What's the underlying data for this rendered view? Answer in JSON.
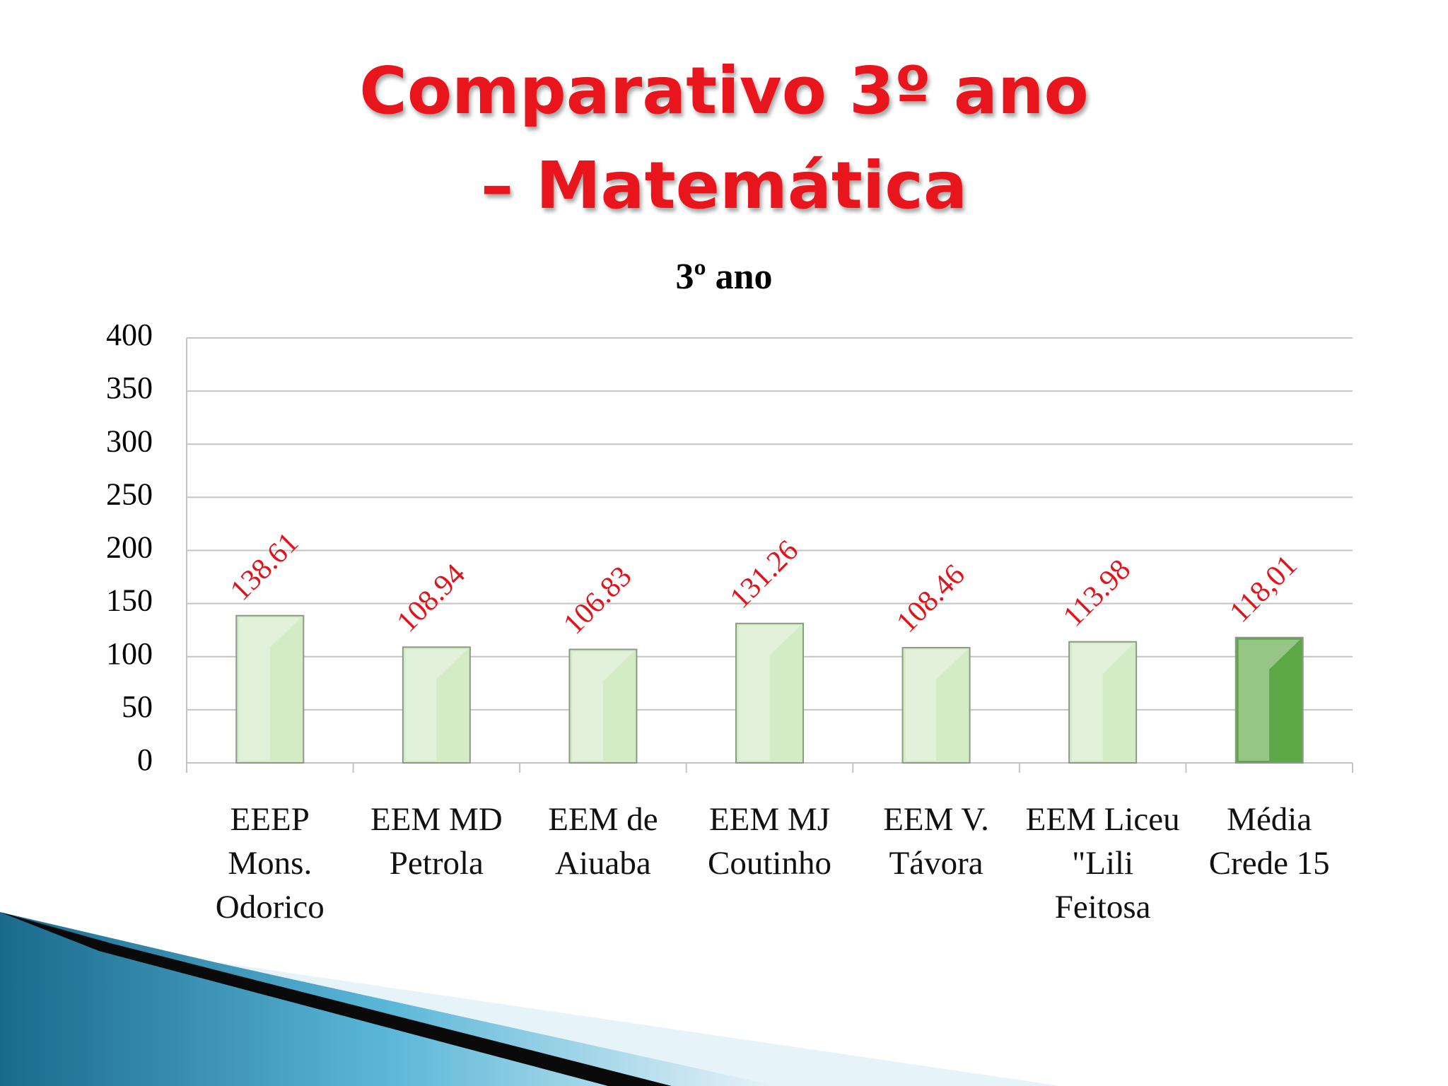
{
  "chart_data": {
    "type": "bar",
    "title": "Comparativo 3º ano – Matemática",
    "subtitle": "3º ano",
    "categories": [
      "EEEP Mons. Odorico",
      "EEM MD Petrola",
      "EEM de Aiuaba",
      "EEM MJ Coutinho",
      "EEM V. Távora",
      "EEM Liceu \"Lili Feitosa",
      "Média Crede 15"
    ],
    "values": [
      138.61,
      108.94,
      106.83,
      131.26,
      108.46,
      113.98,
      118.01
    ],
    "value_labels": [
      "138.61",
      "108.94",
      "106.83",
      "131.26",
      "108.46",
      "113.98",
      "118,01"
    ],
    "colors": [
      "#d3ecc6",
      "#d3ecc6",
      "#d3ecc6",
      "#d3ecc6",
      "#d3ecc6",
      "#d3ecc6",
      "#5ca846"
    ],
    "ylim": [
      0,
      400
    ],
    "yticks": [
      0,
      50,
      100,
      150,
      200,
      250,
      300,
      350,
      400
    ],
    "grid": true
  }
}
